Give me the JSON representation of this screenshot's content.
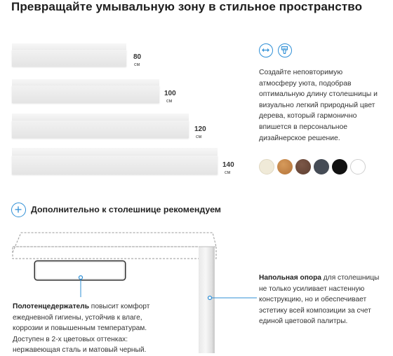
{
  "title": "Превращайте умывальную зону в стильное пространство",
  "shelves": [
    {
      "size": "80",
      "unit": "см"
    },
    {
      "size": "100",
      "unit": "см"
    },
    {
      "size": "120",
      "unit": "см"
    },
    {
      "size": "140",
      "unit": "см"
    }
  ],
  "icons": {
    "width": "arrows-horizontal-icon",
    "material": "brush-icon"
  },
  "description": "Создайте неповторимую атмосферу уюта, подобрав оптимальную длину столешницы и визуально легкий природный цвет дерева, который гармонично впишется в персональное дизайнерское решение.",
  "swatches": [
    "#f0ead8",
    "#c8894a",
    "#6e4c3c",
    "#454b55",
    "#111111",
    "#ffffff"
  ],
  "accessories": {
    "plus_icon": "plus-icon",
    "heading": "Дополнительно к столешнице рекомендуем",
    "towel_holder": {
      "name": "Полотенцедержатель",
      "text": " повысит комфорт ежедневной гигиены, устойчив к влаге, коррозии и повышенным температурам. Доступен в 2-х цветовых оттенках: нержавеющая сталь и матовый черный."
    },
    "floor_support": {
      "name": "Напольная опора",
      "text": " для столешницы не только усиливает настенную конструкцию, но и обеспечивает эстетику всей композиции за счет единой цветовой палитры."
    }
  },
  "accent_color": "#2f8fd6"
}
